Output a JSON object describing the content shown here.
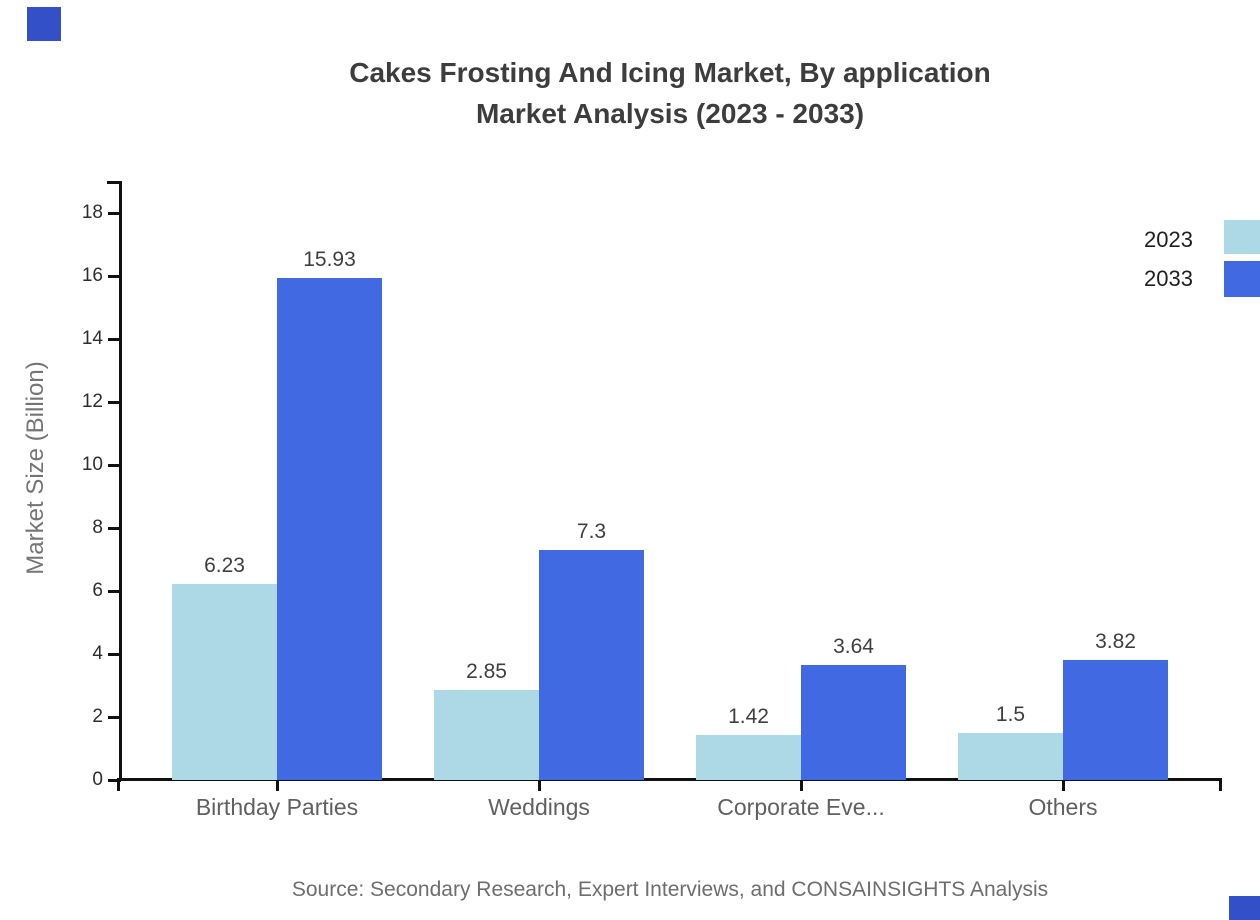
{
  "source": "Source: Secondary Research, Expert Interviews, and CONSAINSIGHTS Analysis",
  "colors": {
    "background": "#ffffff",
    "axis": "#111111",
    "series_2023": "#ADD8E6",
    "series_2033": "#4169E1",
    "corner_mark": "#3450C8",
    "title_text": "#3d3d3d",
    "category_text": "#606060",
    "ylabel_text": "#757575",
    "source_text": "#6e6e6e"
  },
  "chart_data": {
    "type": "bar",
    "title": "Cakes Frosting And Icing Market, By application",
    "subtitle": "Market Analysis (2023 - 2033)",
    "categories": [
      "Birthday Parties",
      "Weddings",
      "Corporate Eve...",
      "Others"
    ],
    "series": [
      {
        "name": "2023",
        "color": "#ADD8E6",
        "values": [
          6.23,
          2.85,
          1.42,
          1.5
        ]
      },
      {
        "name": "2033",
        "color": "#4169E1",
        "values": [
          15.93,
          7.3,
          3.64,
          3.82
        ]
      }
    ],
    "value_labels": [
      "6.23",
      "15.93",
      "2.85",
      "7.3",
      "1.42",
      "3.64",
      "1.5",
      "3.82"
    ],
    "xlabel": "",
    "ylabel": "Market Size (Billion)",
    "ylim": [
      0,
      18
    ],
    "ytick_step": 2,
    "yticks": [
      "0",
      "2",
      "4",
      "6",
      "8",
      "10",
      "12",
      "14",
      "16",
      "18"
    ],
    "grid": false,
    "legend_position": "top-right",
    "legend_entries": [
      "2023",
      "2033"
    ]
  }
}
